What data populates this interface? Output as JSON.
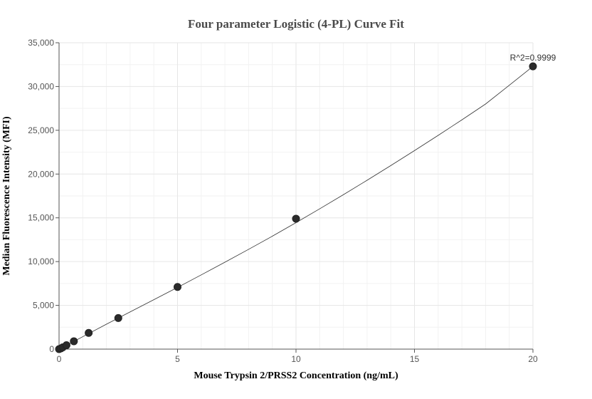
{
  "chart_data": {
    "type": "scatter",
    "title": "Four parameter Logistic (4-PL) Curve Fit",
    "xlabel": "Mouse Trypsin 2/PRSS2 Concentration (ng/mL)",
    "ylabel": "Median Fluorescence Intensity (MFI)",
    "xlim": [
      0,
      20
    ],
    "ylim": [
      0,
      35000
    ],
    "xticks": [
      0,
      5,
      10,
      15,
      20
    ],
    "yticks": [
      0,
      5000,
      10000,
      15000,
      20000,
      25000,
      30000,
      35000
    ],
    "xtick_labels": [
      "0",
      "5",
      "10",
      "15",
      "20"
    ],
    "ytick_labels": [
      "0",
      "5,000",
      "10,000",
      "15,000",
      "20,000",
      "25,000",
      "30,000",
      "35,000"
    ],
    "grid": true,
    "series": [
      {
        "x": [
          0,
          0.078,
          0.156,
          0.3125,
          0.625,
          1.25,
          2.5,
          5,
          10,
          20
        ],
        "y": [
          0,
          80,
          200,
          450,
          900,
          1850,
          3550,
          7100,
          14900,
          32300
        ],
        "color": "#2b2b2b"
      }
    ],
    "fit": {
      "type": "4PL",
      "x": [
        0,
        0.5,
        1,
        2,
        3,
        4,
        5,
        6,
        7,
        8,
        9,
        10,
        11,
        12,
        13,
        14,
        15,
        16,
        17,
        18,
        19,
        20
      ],
      "y": [
        0,
        700,
        1420,
        2850,
        4250,
        5650,
        7050,
        8480,
        9930,
        11400,
        12900,
        14450,
        16030,
        17640,
        19290,
        20970,
        22680,
        24420,
        26190,
        28000,
        30140,
        32300
      ],
      "color": "#333333"
    },
    "annotation": {
      "text": "R^2=0.9999",
      "x": 20,
      "y": 32300
    }
  }
}
